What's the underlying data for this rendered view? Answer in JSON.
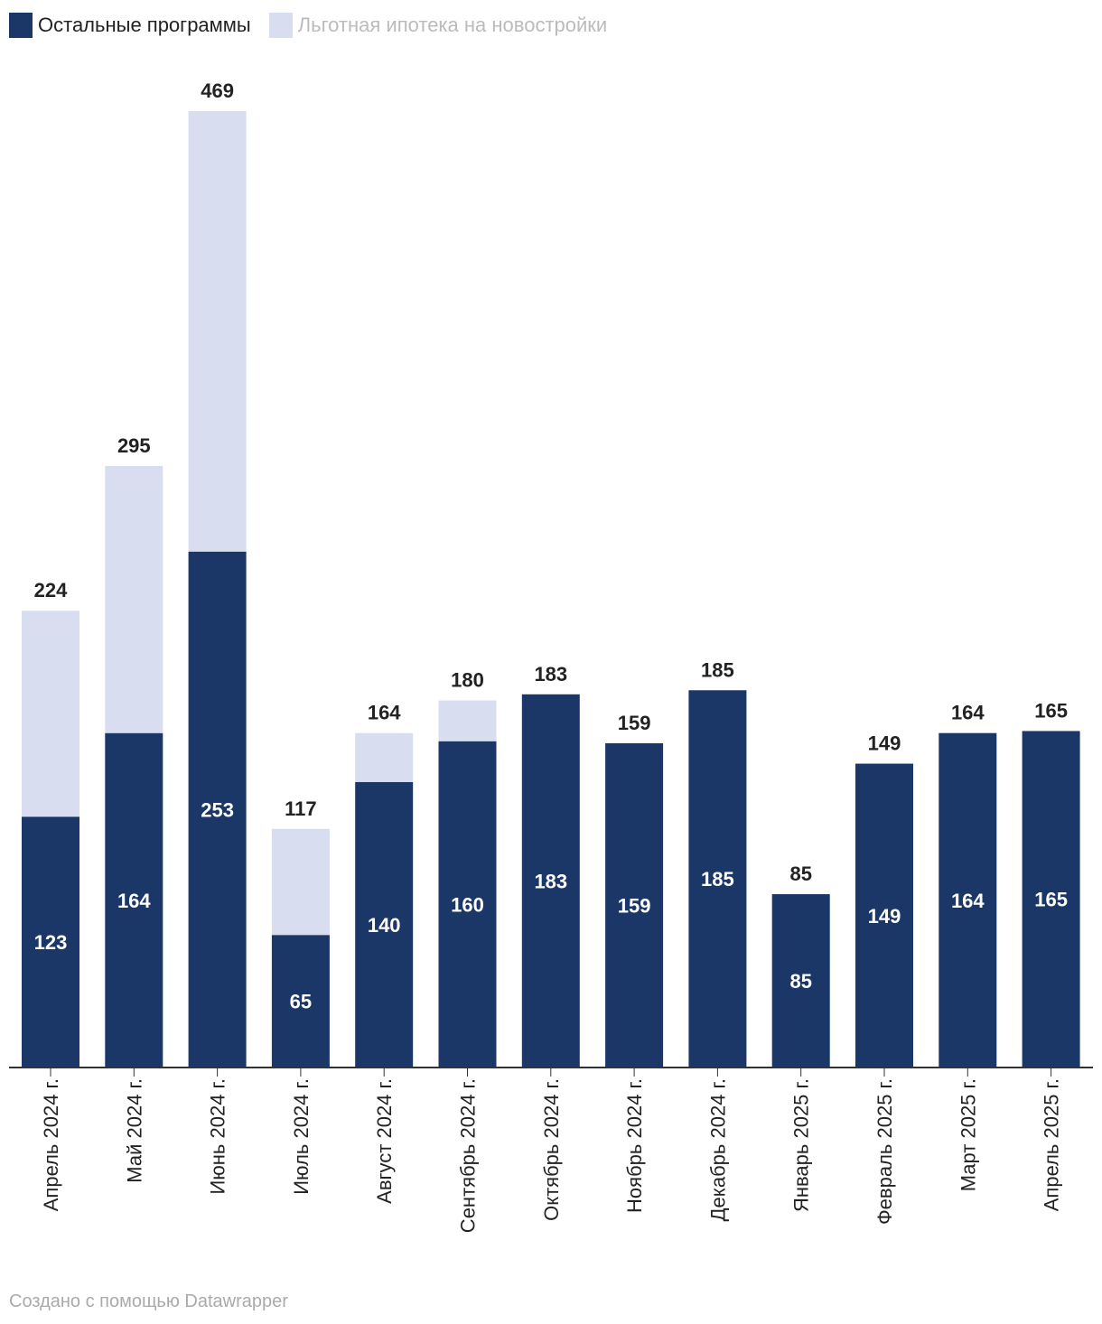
{
  "chart_data": {
    "type": "bar",
    "stacked": true,
    "categories": [
      "Апрель 2024 г.",
      "Май 2024 г.",
      "Июнь 2024 г.",
      "Июль 2024 г.",
      "Август 2024 г.",
      "Сентябрь 2024 г.",
      "Октябрь 2024 г.",
      "Ноябрь 2024 г.",
      "Декабрь 2024 г.",
      "Январь 2025 г.",
      "Февраль 2025 г.",
      "Март 2025 г.",
      "Апрель 2025 г."
    ],
    "series": [
      {
        "name": "Остальные программы",
        "color": "#1a3768",
        "values": [
          123,
          164,
          253,
          65,
          140,
          160,
          183,
          159,
          185,
          85,
          149,
          164,
          165
        ]
      },
      {
        "name": "Льготная ипотека на новостройки",
        "color": "#d8deef",
        "values": [
          101,
          131,
          216,
          52,
          24,
          20,
          0,
          0,
          0,
          0,
          0,
          0,
          0
        ]
      }
    ],
    "totals": [
      224,
      295,
      469,
      117,
      164,
      180,
      183,
      159,
      185,
      85,
      149,
      164,
      165
    ],
    "ylim": [
      0,
      469
    ],
    "grid": false,
    "legend_position": "top-left"
  },
  "legend": {
    "series1_label": "Остальные программы",
    "series2_label": "Льготная ипотека на новостройки"
  },
  "footer": {
    "credit": "Создано с помощью Datawrapper"
  }
}
